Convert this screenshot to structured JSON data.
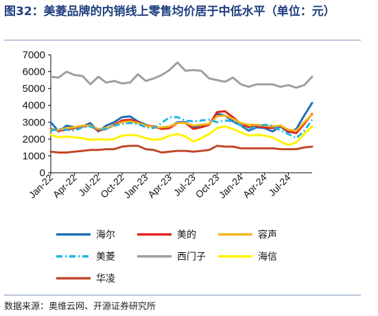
{
  "header": {
    "title": "图32：美菱品牌的内销线上零售均价居于中低水平（单位：元）"
  },
  "footer": {
    "source": "数据来源：奥维云网、开源证券研究所"
  },
  "chart_data": {
    "type": "line",
    "title": "图32：美菱品牌的内销线上零售均价居于中低水平（单位：元）",
    "xlabel": "",
    "ylabel": "",
    "unit": "元",
    "ylim": [
      0,
      7000
    ],
    "yticks": [
      0,
      1000,
      2000,
      3000,
      4000,
      5000,
      6000,
      7000
    ],
    "x": [
      "2022-01",
      "2022-02",
      "2022-03",
      "2022-04",
      "2022-05",
      "2022-06",
      "2022-07",
      "2022-08",
      "2022-09",
      "2022-10",
      "2022-11",
      "2022-12",
      "2023-01",
      "2023-02",
      "2023-03",
      "2023-04",
      "2023-05",
      "2023-06",
      "2023-07",
      "2023-08",
      "2023-09",
      "2023-10",
      "2023-11",
      "2023-12",
      "2024-01",
      "2024-02",
      "2024-03",
      "2024-04",
      "2024-05",
      "2024-06",
      "2024-07",
      "2024-08",
      "2024-09",
      "2024-10"
    ],
    "xtick_labels": [
      "Jan-22",
      "Apr-22",
      "Jul-22",
      "Oct-22",
      "Jan-23",
      "Apr-23",
      "Jul-23",
      "Oct-23",
      "Jan-24",
      "Apr-24",
      "Jul-24"
    ],
    "grid": false,
    "legend_position": "bottom",
    "series": [
      {
        "name": "海尔",
        "color": "#1f6fb4",
        "dash": "solid",
        "values": [
          3000,
          2450,
          2800,
          2700,
          2750,
          2950,
          2450,
          2800,
          3000,
          3300,
          3350,
          3050,
          2850,
          2700,
          2650,
          2700,
          3000,
          3000,
          2700,
          2750,
          2900,
          3500,
          3400,
          3050,
          2800,
          2500,
          2700,
          2650,
          2450,
          2750,
          2400,
          2600,
          3400,
          4150
        ]
      },
      {
        "name": "美的",
        "color": "#e2231a",
        "dash": "solid",
        "values": [
          2600,
          2500,
          2550,
          2650,
          2750,
          2800,
          2500,
          2600,
          2850,
          3100,
          3150,
          3000,
          2800,
          2750,
          2600,
          2650,
          2950,
          2950,
          2600,
          2700,
          2850,
          3600,
          3650,
          3300,
          2900,
          2700,
          2750,
          2700,
          2650,
          2800,
          2450,
          2350,
          2900,
          3500
        ]
      },
      {
        "name": "容声",
        "color": "#f5b61a",
        "dash": "solid",
        "values": [
          2550,
          2550,
          2650,
          2700,
          2800,
          2800,
          2600,
          2650,
          2800,
          3000,
          3050,
          2950,
          2800,
          2700,
          2700,
          2750,
          2950,
          2950,
          2800,
          2850,
          2900,
          3350,
          3400,
          3200,
          2950,
          2850,
          2850,
          2800,
          2750,
          2800,
          2550,
          2500,
          3000,
          3450
        ]
      },
      {
        "name": "美菱",
        "color": "#1fb3e6",
        "dash": "dashdot",
        "values": [
          2500,
          2600,
          2550,
          2500,
          2700,
          2750,
          2550,
          2600,
          2800,
          2900,
          2950,
          2900,
          2700,
          2650,
          2950,
          3300,
          3300,
          3100,
          3050,
          3100,
          3150,
          3000,
          3100,
          3050,
          2800,
          2600,
          2750,
          2850,
          2800,
          2500,
          2300,
          2050,
          2500,
          3150
        ]
      },
      {
        "name": "西门子",
        "color": "#9e9e9e",
        "dash": "solid",
        "values": [
          5700,
          5650,
          6000,
          5800,
          5750,
          5250,
          5700,
          5350,
          5450,
          5300,
          5350,
          5850,
          5450,
          5600,
          5800,
          6100,
          6550,
          6050,
          6100,
          6050,
          5600,
          5500,
          5400,
          5650,
          5250,
          5100,
          5250,
          5250,
          5250,
          5100,
          5200,
          5050,
          5200,
          5700
        ]
      },
      {
        "name": "海信",
        "color": "#fff200",
        "dash": "solid",
        "values": [
          2250,
          2100,
          2150,
          2100,
          2050,
          1950,
          2000,
          1950,
          2000,
          2200,
          2250,
          2200,
          2050,
          1950,
          2000,
          2200,
          2300,
          2150,
          1850,
          2050,
          2300,
          2650,
          2750,
          2600,
          2400,
          2200,
          2250,
          2200,
          2100,
          1850,
          1650,
          1800,
          2300,
          2750
        ]
      },
      {
        "name": "华凌",
        "color": "#c0462a",
        "dash": "solid",
        "values": [
          1250,
          1200,
          1200,
          1250,
          1300,
          1350,
          1350,
          1400,
          1400,
          1550,
          1600,
          1600,
          1400,
          1350,
          1200,
          1250,
          1300,
          1300,
          1250,
          1300,
          1350,
          1600,
          1550,
          1550,
          1450,
          1450,
          1450,
          1450,
          1450,
          1400,
          1400,
          1400,
          1500,
          1550
        ]
      }
    ]
  }
}
